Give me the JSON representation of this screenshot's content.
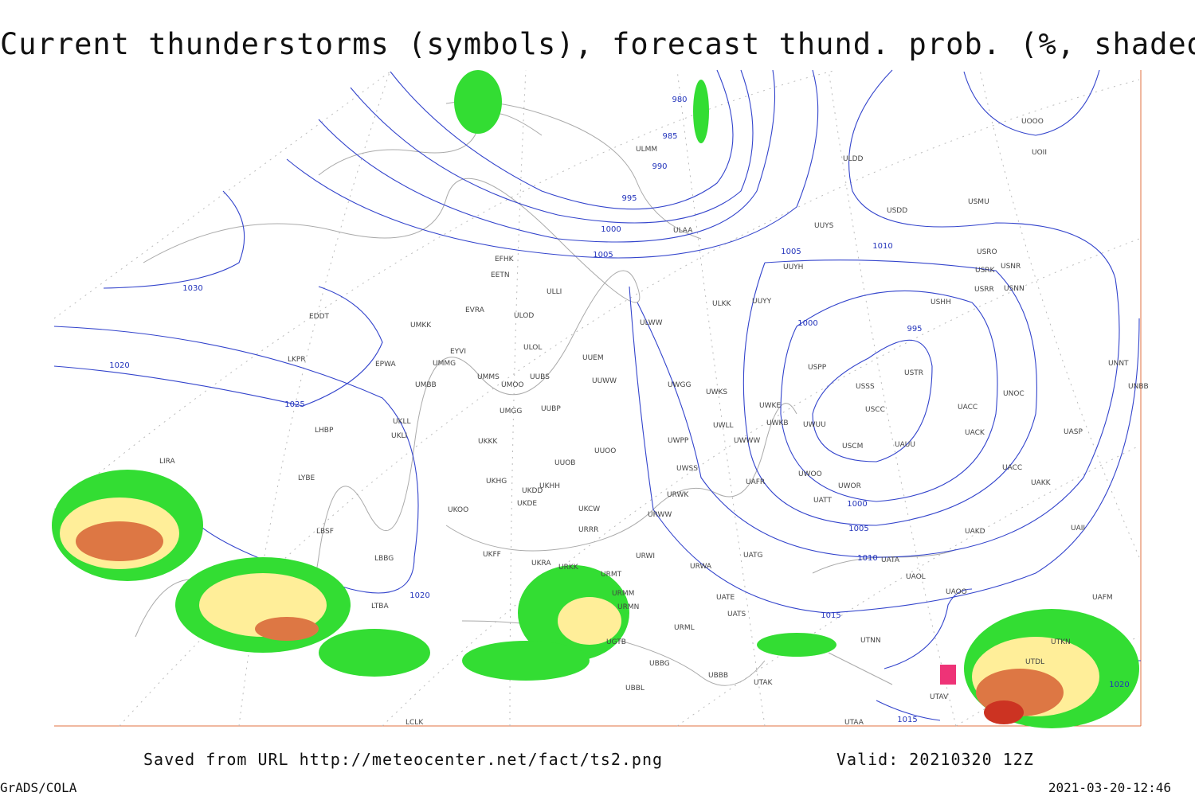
{
  "header": {
    "title": "Current thunderstorms (symbols), forecast thund. prob. (%, shaded)"
  },
  "isobar_labels": [
    "980",
    "985",
    "990",
    "995",
    "1000",
    "1005",
    "1030",
    "1020",
    "1025",
    "1020",
    "1005",
    "1010",
    "1000",
    "995",
    "1000",
    "1005",
    "1010",
    "1015",
    "1015",
    "1020"
  ],
  "stations": [
    "UOOO",
    "UOII",
    "ULDD",
    "USDD",
    "USMU",
    "UUYS",
    "ULAA",
    "ULMM",
    "USRO",
    "USRK",
    "USNR",
    "UUYH",
    "USRR",
    "USNN",
    "USHH",
    "UUYY",
    "ULKK",
    "EFHK",
    "EETN",
    "ULLI",
    "EVRA",
    "ULOD",
    "ULWW",
    "EDDT",
    "UMKK",
    "EYVI",
    "ULOL",
    "UUEM",
    "LKPR",
    "EPWA",
    "UMMG",
    "USPP",
    "USTR",
    "UNNT",
    "UMMS",
    "UMOO",
    "UUBS",
    "UUWW",
    "UWGG",
    "UMBB",
    "USSS",
    "UNBB",
    "UWKS",
    "UNOC",
    "UWKE",
    "USCC",
    "UACC",
    "UMGG",
    "UUBP",
    "UWLL",
    "UWKB",
    "UWUU",
    "UKLL",
    "LHBP",
    "UKLI",
    "UACK",
    "UASP",
    "UWWW",
    "UWPP",
    "USCM",
    "UAUU",
    "UKKK",
    "UUOO",
    "UUOB",
    "LIRA",
    "UWSS",
    "UACC",
    "UAFR",
    "UWOO",
    "UKHG",
    "UKHH",
    "LYBE",
    "UKDD",
    "UWOR",
    "UAKK",
    "UKOO",
    "UKDE",
    "URWK",
    "UATT",
    "UKCW",
    "URWW",
    "LBSF",
    "URRR",
    "UAKD",
    "UAII",
    "UKFF",
    "LBBG",
    "UATG",
    "URWI",
    "UKRA",
    "URKK",
    "URMT",
    "UATA",
    "URWA",
    "UAOL",
    "UAOO",
    "URMM",
    "UAFM",
    "URMN",
    "UATE",
    "UATS",
    "LTBA",
    "URML",
    "UGTB",
    "UTNN",
    "UTKN",
    "UBBG",
    "UTDL",
    "UBBB",
    "UBBL",
    "UTAK",
    "UTAV",
    "UTAA",
    "LCLK"
  ],
  "footer": {
    "source": "Saved from URL http://meteocenter.net/fact/ts2.png",
    "valid": "Valid: 20210320 12Z",
    "software": "GrADS/COLA",
    "timestamp": "2021-03-20-12:46"
  }
}
